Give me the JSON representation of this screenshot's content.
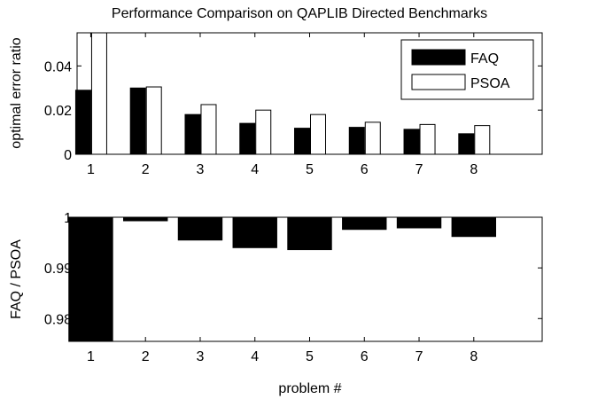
{
  "chart_data": [
    {
      "type": "bar",
      "title": "Performance Comparison on QAPLIB Directed Benchmarks",
      "xlabel": "",
      "ylabel": "optimal error ratio",
      "categories": [
        "1",
        "2",
        "3",
        "4",
        "5",
        "6",
        "7",
        "8"
      ],
      "series": [
        {
          "name": "FAQ",
          "color": "#000000",
          "values": [
            0.029,
            0.03,
            0.018,
            0.014,
            0.0118,
            0.0122,
            0.0113,
            0.0093
          ]
        },
        {
          "name": "PSOA",
          "color": "#ffffff",
          "values": [
            0.055,
            0.0305,
            0.0225,
            0.02,
            0.018,
            0.0145,
            0.0135,
            0.013
          ]
        }
      ],
      "ylim": [
        0,
        0.055
      ],
      "yticks": [
        0,
        0.02,
        0.04
      ],
      "ytick_labels": [
        "0",
        "0.02",
        "0.04"
      ],
      "legend": "top-right",
      "grid": false
    },
    {
      "type": "bar",
      "title": "",
      "xlabel": "problem #",
      "ylabel": "FAQ / PSOA",
      "categories": [
        "1",
        "2",
        "3",
        "4",
        "5",
        "6",
        "7",
        "8"
      ],
      "series": [
        {
          "color": "#000000",
          "values": [
            0.9755,
            0.9993,
            0.9955,
            0.994,
            0.9936,
            0.9976,
            0.9979,
            0.9962
          ]
        }
      ],
      "ylim": [
        0.9755,
        1.0
      ],
      "bar_baseline": 1.0,
      "yticks": [
        0.98,
        0.99,
        1.0
      ],
      "ytick_labels": [
        "0.98",
        "0.99",
        "1"
      ],
      "grid": false
    }
  ]
}
